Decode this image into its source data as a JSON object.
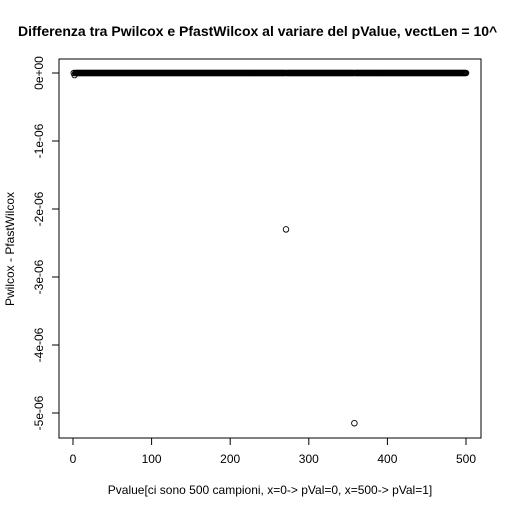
{
  "chart_data": {
    "type": "scatter",
    "title": "Differenza tra Pwilcox e PfastWilcox al variare del pValue, vectLen = 10^",
    "xlabel": "Pvalue[ci sono 500 campioni, x=0-> pVal=0, x=500-> pVal=1]",
    "ylabel": "Pwilcox - PfastWilcox",
    "xlim": [
      0,
      500
    ],
    "ylim": [
      -5e-06,
      0
    ],
    "x_ticks": [
      0,
      100,
      200,
      300,
      400,
      500
    ],
    "x_tick_labels": [
      "0",
      "100",
      "200",
      "300",
      "400",
      "500"
    ],
    "y_ticks": [
      0,
      -1e-06,
      -2e-06,
      -3e-06,
      -4e-06,
      -5e-06
    ],
    "y_tick_labels": [
      "0e+00",
      "-1e-06",
      "-2e-06",
      "-3e-06",
      "-4e-06",
      "-5e-06"
    ],
    "grid": false,
    "marker": "open-circle",
    "x_range_dense": [
      1,
      500
    ],
    "y_dense": 0,
    "outliers": [
      {
        "x": 2,
        "y": -3e-08
      },
      {
        "x": 271,
        "y": -2.3e-06
      },
      {
        "x": 358,
        "y": -5.15e-06
      }
    ]
  }
}
